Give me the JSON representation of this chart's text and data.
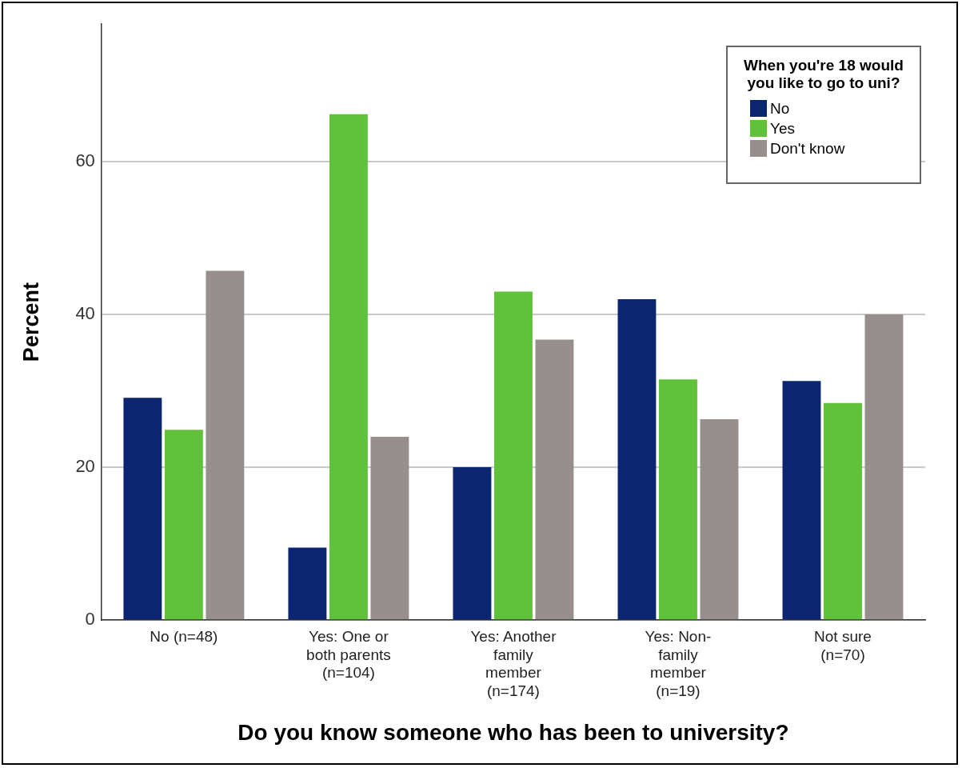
{
  "chart_data": {
    "type": "bar",
    "xlabel": "Do you know someone who has been to university?",
    "ylabel": "Percent",
    "legend_title": "When you're 18 would you like to go to uni?",
    "categories": [
      "No (n=48)",
      "Yes: One or\nboth parents\n(n=104)",
      "Yes: Another\nfamily\nmember\n(n=174)",
      "Yes: Non-\nfamily\nmember\n(n=19)",
      "Not sure\n(n=70)"
    ],
    "series": [
      {
        "name": "No",
        "color": "#0b2570",
        "values": [
          29.1,
          9.5,
          20.0,
          42.0,
          31.3
        ]
      },
      {
        "name": "Yes",
        "color": "#5fc23a",
        "values": [
          24.9,
          66.2,
          43.0,
          31.5,
          28.4
        ]
      },
      {
        "name": "Don't know",
        "color": "#978f8e",
        "values": [
          45.7,
          24.0,
          36.7,
          26.3,
          40.0
        ]
      }
    ],
    "ylim": [
      0,
      78
    ],
    "yticks": [
      0,
      20,
      40,
      60
    ],
    "grid": "y",
    "legend": "top right"
  }
}
